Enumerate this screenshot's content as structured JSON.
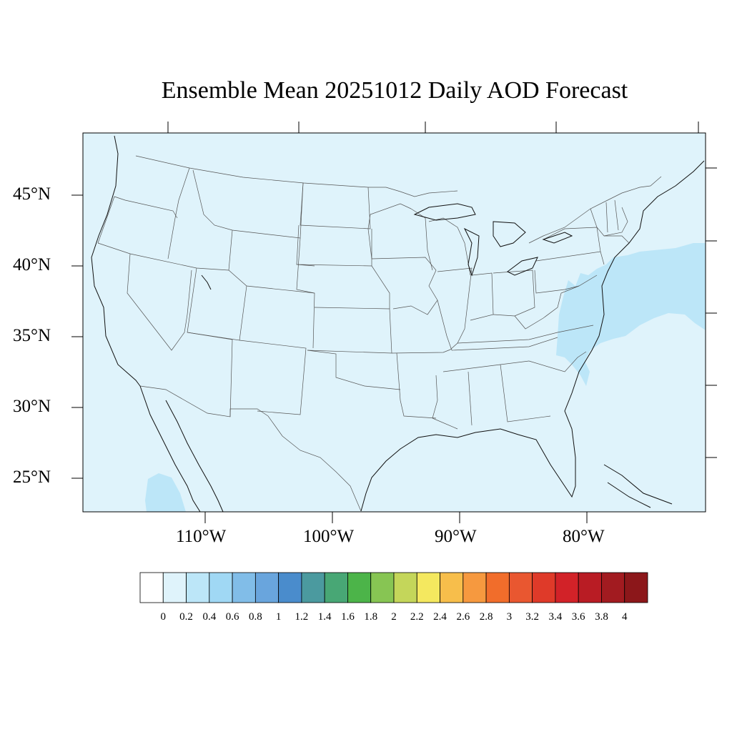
{
  "title": "Ensemble Mean 20251012 Daily AOD Forecast",
  "map": {
    "region": "Contiguous United States",
    "lat_labels": [
      "45°N",
      "40°N",
      "35°N",
      "30°N",
      "25°N"
    ],
    "lon_labels": [
      "110°W",
      "100°W",
      "90°W",
      "80°W"
    ],
    "background_fill_color": "#dff3fb",
    "elevated_aod_fill_color": "#bce6f8",
    "field_summary": {
      "dominant_level": "0 - 0.2",
      "elevated_level": "0.2 - 0.4",
      "elevated_regions": [
        "Atlantic offshore of Mid-Atlantic and Northeast",
        "eastern Virginia / North Carolina coast",
        "Gulf of California / Baja"
      ]
    }
  },
  "colorbar": {
    "labels": [
      "0",
      "0.2",
      "0.4",
      "0.6",
      "0.8",
      "1",
      "1.2",
      "1.4",
      "1.6",
      "1.8",
      "2",
      "2.2",
      "2.4",
      "2.6",
      "2.8",
      "3",
      "3.2",
      "3.4",
      "3.6",
      "3.8",
      "4"
    ],
    "colors": [
      "#ffffff",
      "#dff3fb",
      "#bce6f8",
      "#a0d8f4",
      "#81bde8",
      "#69a5dd",
      "#4a8ccc",
      "#4b9a9f",
      "#48a775",
      "#4cb449",
      "#87c553",
      "#c4d65a",
      "#f4e85f",
      "#f7be4b",
      "#f6993f",
      "#f16d2b",
      "#e95730",
      "#df3a29",
      "#d22228",
      "#b91c24",
      "#a21b20",
      "#8c171a"
    ]
  }
}
